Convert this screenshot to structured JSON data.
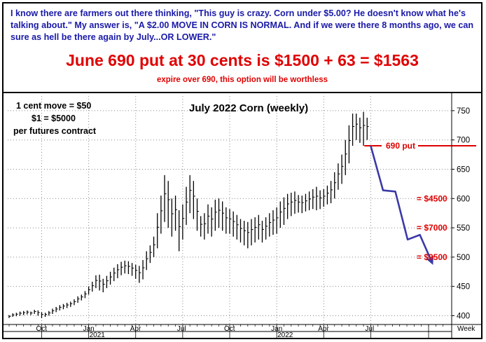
{
  "header": {
    "intro": "I know there are farmers out there thinking, \"This guy is crazy. Corn under $5.00? He doesn't know what he's talking about.\" My answer is, \"A $2.00 MOVE IN CORN IS NORMAL. And if we were there 8 months ago, we can sure as hell be there again by July...OR LOWER.\"",
    "headline": "June 690 put at 30 cents is $1500 + 63 = $1563",
    "subline": "expire over 690, this option will be worthless"
  },
  "notes": {
    "line1": "1 cent move = $50",
    "line2": "$1 = $5000",
    "line3": "per futures contract"
  },
  "colors": {
    "accent_red": "#e00000",
    "projection_blue": "#3a3aa8",
    "header_blue": "#1a1aa8",
    "grid": "#888888"
  },
  "chart_data": {
    "type": "ohlc",
    "title": "July 2022 Corn (weekly)",
    "ylim": [
      385,
      775
    ],
    "y_ticks": [
      400,
      450,
      500,
      550,
      600,
      650,
      700,
      750
    ],
    "grid": true,
    "x_month_labels": [
      "Oct",
      "Jan",
      "Apr",
      "Jul",
      "Oct",
      "Jan",
      "Apr",
      "Jul",
      "Week"
    ],
    "x_year_labels": [
      "2021",
      "2022"
    ],
    "weekly_bars": [
      [
        396,
        401
      ],
      [
        398,
        404
      ],
      [
        399,
        405
      ],
      [
        400,
        407
      ],
      [
        401,
        408
      ],
      [
        402,
        409
      ],
      [
        401,
        407
      ],
      [
        403,
        410
      ],
      [
        400,
        409
      ],
      [
        396,
        406
      ],
      [
        398,
        405
      ],
      [
        400,
        408
      ],
      [
        403,
        412
      ],
      [
        406,
        415
      ],
      [
        409,
        418
      ],
      [
        411,
        420
      ],
      [
        413,
        422
      ],
      [
        415,
        424
      ],
      [
        418,
        428
      ],
      [
        422,
        433
      ],
      [
        426,
        436
      ],
      [
        430,
        442
      ],
      [
        436,
        450
      ],
      [
        441,
        458
      ],
      [
        447,
        469
      ],
      [
        443,
        470
      ],
      [
        440,
        463
      ],
      [
        447,
        468
      ],
      [
        453,
        475
      ],
      [
        459,
        482
      ],
      [
        464,
        488
      ],
      [
        469,
        492
      ],
      [
        472,
        494
      ],
      [
        471,
        493
      ],
      [
        468,
        490
      ],
      [
        463,
        487
      ],
      [
        456,
        485
      ],
      [
        462,
        495
      ],
      [
        478,
        510
      ],
      [
        490,
        520
      ],
      [
        500,
        535
      ],
      [
        515,
        575
      ],
      [
        540,
        605
      ],
      [
        560,
        640
      ],
      [
        550,
        630
      ],
      [
        535,
        600
      ],
      [
        545,
        605
      ],
      [
        510,
        580
      ],
      [
        530,
        590
      ],
      [
        555,
        620
      ],
      [
        575,
        640
      ],
      [
        565,
        630
      ],
      [
        545,
        600
      ],
      [
        535,
        570
      ],
      [
        530,
        575
      ],
      [
        540,
        590
      ],
      [
        535,
        585
      ],
      [
        545,
        598
      ],
      [
        550,
        600
      ],
      [
        545,
        595
      ],
      [
        540,
        585
      ],
      [
        540,
        582
      ],
      [
        535,
        578
      ],
      [
        530,
        572
      ],
      [
        525,
        565
      ],
      [
        520,
        562
      ],
      [
        515,
        560
      ],
      [
        520,
        565
      ],
      [
        525,
        568
      ],
      [
        530,
        572
      ],
      [
        525,
        562
      ],
      [
        530,
        568
      ],
      [
        535,
        575
      ],
      [
        538,
        580
      ],
      [
        540,
        585
      ],
      [
        550,
        595
      ],
      [
        555,
        602
      ],
      [
        565,
        608
      ],
      [
        570,
        610
      ],
      [
        574,
        612
      ],
      [
        576,
        606
      ],
      [
        575,
        605
      ],
      [
        578,
        608
      ],
      [
        580,
        612
      ],
      [
        582,
        616
      ],
      [
        580,
        620
      ],
      [
        582,
        614
      ],
      [
        586,
        616
      ],
      [
        590,
        622
      ],
      [
        592,
        630
      ],
      [
        600,
        645
      ],
      [
        615,
        660
      ],
      [
        625,
        675
      ],
      [
        640,
        700
      ],
      [
        660,
        725
      ],
      [
        690,
        745
      ],
      [
        700,
        745
      ],
      [
        695,
        738
      ],
      [
        690,
        748
      ],
      [
        700,
        738
      ]
    ],
    "projection_path": [
      [
        690,
        690
      ],
      [
        620,
        614
      ],
      [
        595,
        612
      ],
      [
        545,
        530
      ],
      [
        540,
        538
      ],
      [
        493,
        490
      ]
    ],
    "annotations": [
      {
        "label": "690 put",
        "price": 690
      },
      {
        "label": "= $4500",
        "price": 600
      },
      {
        "label": "= $7000",
        "price": 550
      },
      {
        "label": "= $9500",
        "price": 500
      }
    ]
  }
}
